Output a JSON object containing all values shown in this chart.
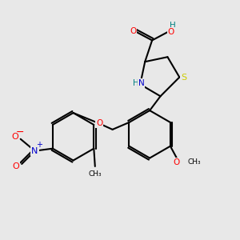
{
  "background_color": "#e8e8e8",
  "bond_color": "#000000",
  "atom_colors": {
    "O": "#ff0000",
    "N": "#0000cc",
    "S": "#cccc00",
    "H": "#008080",
    "C": "#000000"
  }
}
